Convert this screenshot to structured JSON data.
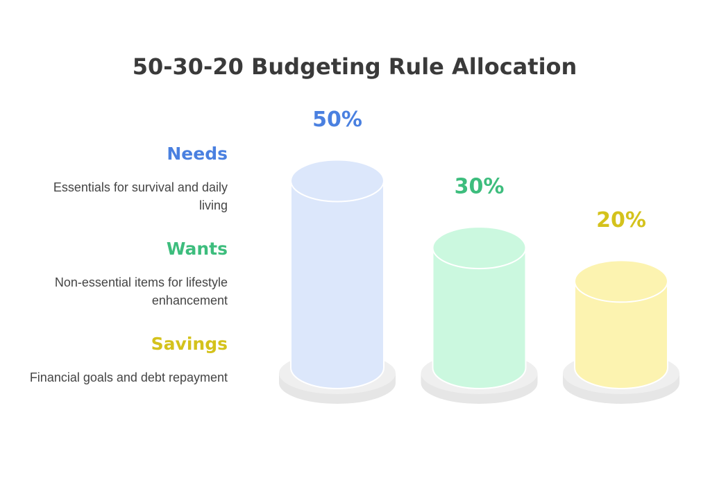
{
  "chart_data": {
    "type": "cylinder",
    "title": "50-30-20 Budgeting Rule Allocation",
    "categories": [
      "Needs",
      "Wants",
      "Savings"
    ],
    "descriptions": [
      "Essentials for survival and daily living",
      "Non-essential items for lifestyle enhancement",
      "Financial goals and debt repayment"
    ],
    "values": [
      50,
      30,
      20
    ],
    "value_labels": [
      "50%",
      "30%",
      "20%"
    ],
    "colors": [
      "#4a80e0",
      "#3dbd7d",
      "#d4c21c"
    ],
    "fill_colors": [
      "#dce7fb",
      "#cbf8df",
      "#fcf3b0"
    ]
  }
}
